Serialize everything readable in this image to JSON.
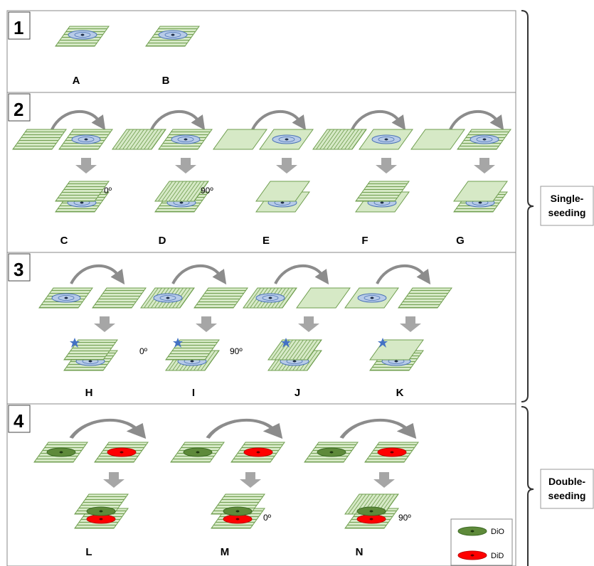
{
  "panels": [
    {
      "number": "1",
      "items": [
        {
          "label": "A"
        },
        {
          "label": "B"
        }
      ]
    },
    {
      "number": "2",
      "items": [
        {
          "label": "C",
          "angle": "0º"
        },
        {
          "label": "D",
          "angle": "90º"
        },
        {
          "label": "E"
        },
        {
          "label": "F"
        },
        {
          "label": "G"
        }
      ]
    },
    {
      "number": "3",
      "items": [
        {
          "label": "H",
          "angle": "0º"
        },
        {
          "label": "I",
          "angle": "90º"
        },
        {
          "label": "J"
        },
        {
          "label": "K"
        }
      ]
    },
    {
      "number": "4",
      "items": [
        {
          "label": "L"
        },
        {
          "label": "M",
          "angle": "0º"
        },
        {
          "label": "N",
          "angle": "90º"
        }
      ]
    }
  ],
  "brackets": [
    {
      "lines": [
        "Single-",
        "seeding"
      ]
    },
    {
      "lines": [
        "Double-",
        "seeding"
      ]
    }
  ],
  "legend": [
    {
      "label": "DiO"
    },
    {
      "label": "DiD"
    }
  ]
}
